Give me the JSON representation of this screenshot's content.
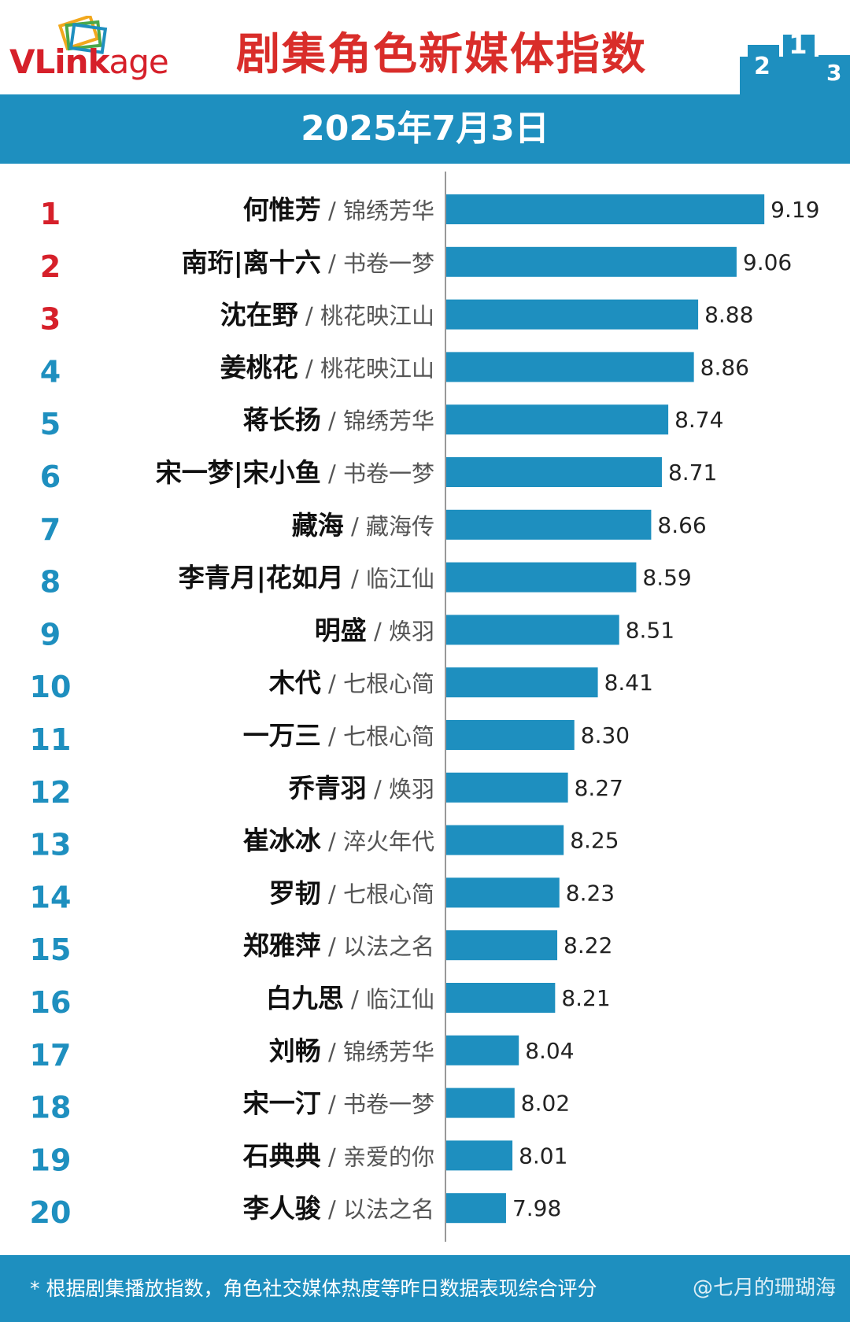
{
  "header": {
    "logo_text_a": "VLink",
    "logo_text_b": "age",
    "title": "剧集角色新媒体指数"
  },
  "date": "2025年7月3日",
  "footer": {
    "note": "* 根据剧集播放指数，角色社交媒体热度等昨日数据表现综合评分",
    "watermark": "@七月的珊瑚海"
  },
  "colors": {
    "bar": "#1e8fbf",
    "rank_top": "#d6202a",
    "rank_other": "#1e8fbf",
    "title": "#d92d2a"
  },
  "chart_data": {
    "type": "bar",
    "orientation": "horizontal",
    "title": "剧集角色新媒体指数",
    "xlim": [
      7.7,
      9.3
    ],
    "grid": false,
    "rows": [
      {
        "rank": "1",
        "role": "何惟芳",
        "drama": "锦绣芳华",
        "value": 9.19
      },
      {
        "rank": "2",
        "role": "南珩|离十六",
        "drama": "书卷一梦",
        "value": 9.06
      },
      {
        "rank": "3",
        "role": "沈在野",
        "drama": "桃花映江山",
        "value": 8.88
      },
      {
        "rank": "4",
        "role": "姜桃花",
        "drama": "桃花映江山",
        "value": 8.86
      },
      {
        "rank": "5",
        "role": "蒋长扬",
        "drama": "锦绣芳华",
        "value": 8.74
      },
      {
        "rank": "6",
        "role": "宋一梦|宋小鱼",
        "drama": "书卷一梦",
        "value": 8.71
      },
      {
        "rank": "7",
        "role": "藏海",
        "drama": "藏海传",
        "value": 8.66
      },
      {
        "rank": "8",
        "role": "李青月|花如月",
        "drama": "临江仙",
        "value": 8.59
      },
      {
        "rank": "9",
        "role": "明盛",
        "drama": "焕羽",
        "value": 8.51
      },
      {
        "rank": "10",
        "role": "木代",
        "drama": "七根心简",
        "value": 8.41
      },
      {
        "rank": "11",
        "role": "一万三",
        "drama": "七根心简",
        "value": 8.3
      },
      {
        "rank": "12",
        "role": "乔青羽",
        "drama": "焕羽",
        "value": 8.27
      },
      {
        "rank": "13",
        "role": "崔冰冰",
        "drama": "淬火年代",
        "value": 8.25
      },
      {
        "rank": "14",
        "role": "罗韧",
        "drama": "七根心简",
        "value": 8.23
      },
      {
        "rank": "15",
        "role": "郑雅萍",
        "drama": "以法之名",
        "value": 8.22
      },
      {
        "rank": "16",
        "role": "白九思",
        "drama": "临江仙",
        "value": 8.21
      },
      {
        "rank": "17",
        "role": "刘畅",
        "drama": "锦绣芳华",
        "value": 8.04
      },
      {
        "rank": "18",
        "role": "宋一汀",
        "drama": "书卷一梦",
        "value": 8.02
      },
      {
        "rank": "19",
        "role": "石典典",
        "drama": "亲爱的你",
        "value": 8.01
      },
      {
        "rank": "20",
        "role": "李人骏",
        "drama": "以法之名",
        "value": 7.98
      }
    ]
  }
}
